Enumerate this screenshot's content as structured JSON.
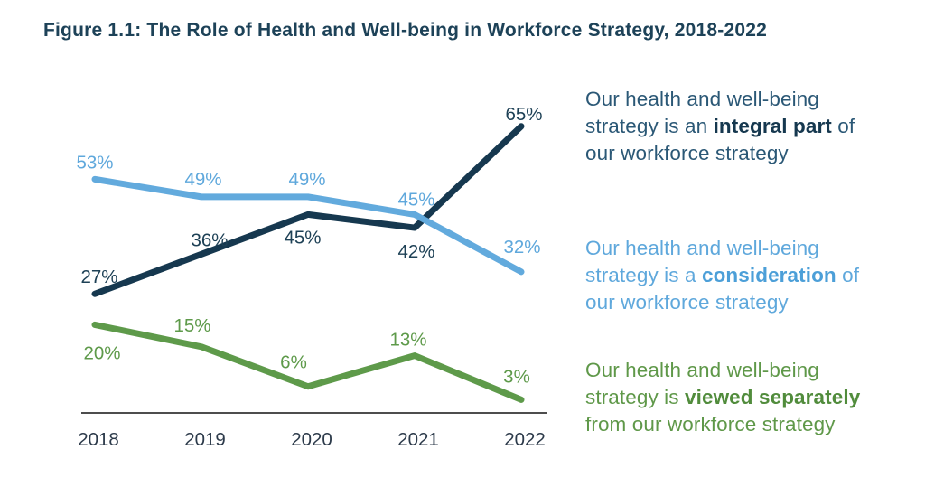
{
  "figure": {
    "title": "Figure 1.1: The Role of Health and Well-being in Workforce Strategy, 2018-2022"
  },
  "chart_data": {
    "type": "line",
    "x": [
      "2018",
      "2019",
      "2020",
      "2021",
      "2022"
    ],
    "series": [
      {
        "name": "integral-part",
        "values": [
          27,
          36,
          45,
          42,
          65
        ],
        "labels": [
          "27%",
          "36%",
          "45%",
          "42%",
          "65%"
        ],
        "color": "#16384f",
        "label_color": "#1e4156"
      },
      {
        "name": "consideration",
        "values": [
          53,
          49,
          49,
          45,
          32
        ],
        "labels": [
          "53%",
          "49%",
          "49%",
          "45%",
          "32%"
        ],
        "color": "#62aadd",
        "label_color": "#5fa8dc"
      },
      {
        "name": "viewed-separately",
        "values": [
          20,
          15,
          6,
          13,
          3
        ],
        "labels": [
          "20%",
          "15%",
          "6%",
          "13%",
          "3%"
        ],
        "color": "#5e9a4a",
        "label_color": "#5e9a4a"
      }
    ],
    "ylim": [
      0,
      76
    ],
    "xlabel": "",
    "ylabel": "",
    "grid": false,
    "legend_position": "right",
    "axis_color": "#4d4d4d",
    "tick_color": "#2c3a4a"
  },
  "legend": [
    {
      "name": "integral-part",
      "color": "#2b5876",
      "bold_color": "#16384f",
      "lines": [
        [
          {
            "t": "Our health and well-being",
            "b": false
          }
        ],
        [
          {
            "t": "strategy is an ",
            "b": false
          },
          {
            "t": "integral part",
            "b": true
          },
          {
            "t": " of",
            "b": false
          }
        ],
        [
          {
            "t": "our workforce strategy",
            "b": false
          }
        ]
      ]
    },
    {
      "name": "consideration",
      "color": "#5fa8dc",
      "bold_color": "#4c9fd8",
      "lines": [
        [
          {
            "t": "Our health and well-being",
            "b": false
          }
        ],
        [
          {
            "t": "strategy is a ",
            "b": false
          },
          {
            "t": "consideration",
            "b": true
          },
          {
            "t": " of",
            "b": false
          }
        ],
        [
          {
            "t": "our workforce strategy",
            "b": false
          }
        ]
      ]
    },
    {
      "name": "viewed-separately",
      "color": "#5f9849",
      "bold_color": "#518c3c",
      "lines": [
        [
          {
            "t": "Our health and well-being",
            "b": false
          }
        ],
        [
          {
            "t": "strategy is ",
            "b": false
          },
          {
            "t": "viewed separately",
            "b": true
          }
        ],
        [
          {
            "t": "from our workforce strategy",
            "b": false
          }
        ]
      ]
    }
  ]
}
